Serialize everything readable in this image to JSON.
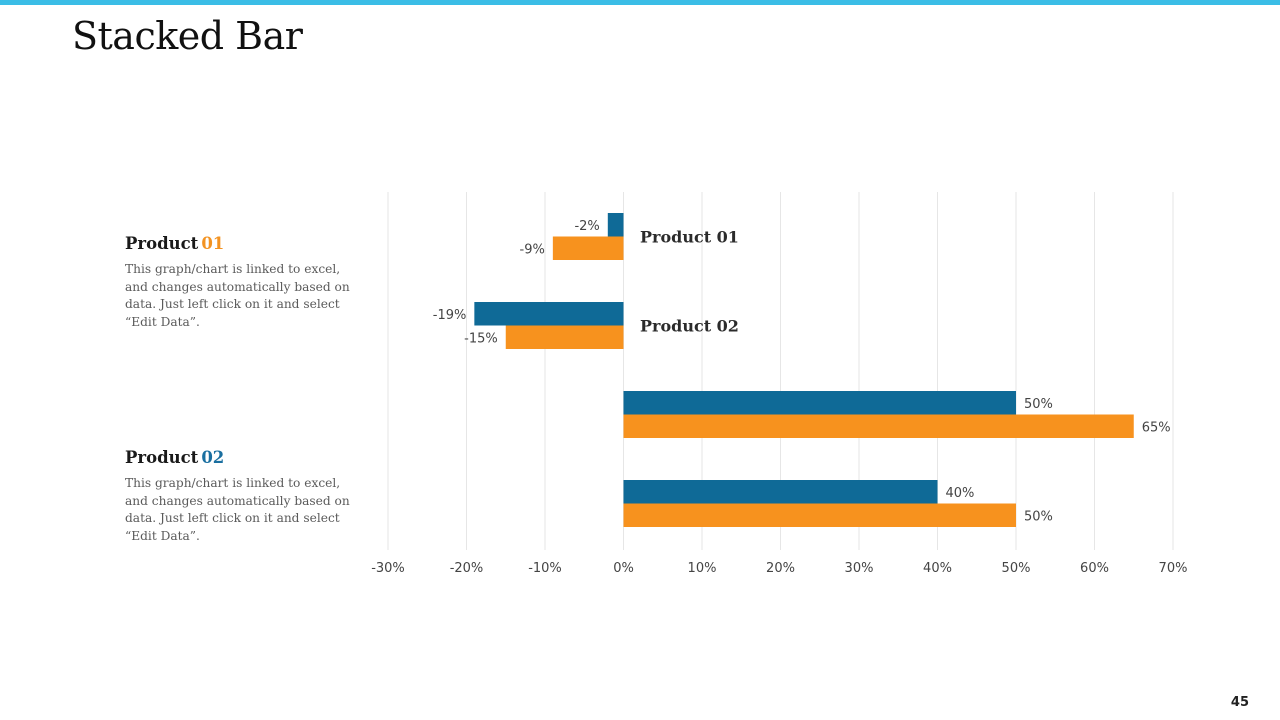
{
  "slide": {
    "title": "Stacked Bar",
    "page_number": "45",
    "accent_color": "#3bbde6"
  },
  "legend": [
    {
      "name": "Product",
      "number": "01",
      "number_color": "#f39322",
      "description": "This graph/chart is linked to excel, and changes automatically based on data. Just left click on it and select “Edit Data”."
    },
    {
      "name": "Product",
      "number": "02",
      "number_color": "#1a6fa0",
      "description": "This graph/chart is linked to excel, and changes automatically based on data. Just left click on it and select “Edit Data”."
    }
  ],
  "chart_data": {
    "type": "bar",
    "orientation": "horizontal",
    "title": "",
    "xlabel": "",
    "ylabel": "",
    "xlim": [
      -30,
      70
    ],
    "tick_step": 10,
    "tick_suffix": "%",
    "grid": true,
    "categories": [
      "Product 01",
      "Product 02",
      "",
      ""
    ],
    "series": [
      {
        "name": "Product 01",
        "color": "#0f6a97",
        "values": [
          -2,
          -19,
          50,
          40
        ]
      },
      {
        "name": "Product 02",
        "color": "#f7921e",
        "values": [
          -9,
          -15,
          65,
          50
        ]
      }
    ]
  }
}
